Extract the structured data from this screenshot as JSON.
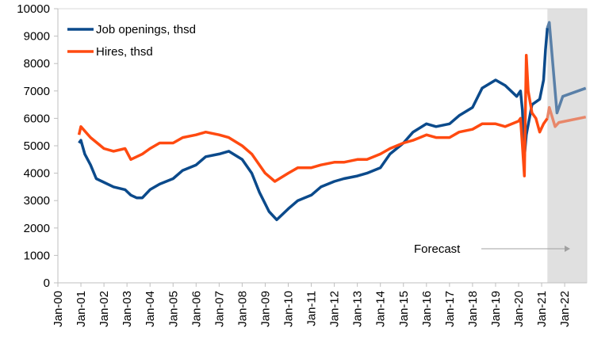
{
  "chart_data": {
    "type": "line",
    "title": "",
    "xlabel": "",
    "ylabel": "",
    "ylim": [
      0,
      10000
    ],
    "yticks": [
      0,
      1000,
      2000,
      3000,
      4000,
      5000,
      6000,
      7000,
      8000,
      9000,
      10000
    ],
    "xticks": [
      "Jan-00",
      "Jan-01",
      "Jan-02",
      "Jan-03",
      "Jan-04",
      "Jan-05",
      "Jan-06",
      "Jan-07",
      "Jan-08",
      "Jan-09",
      "Jan-10",
      "Jan-11",
      "Jan-12",
      "Jan-13",
      "Jan-14",
      "Jan-15",
      "Jan-16",
      "Jan-17",
      "Jan-18",
      "Jan-19",
      "Jan-20",
      "Jan-21",
      "Jan-22"
    ],
    "grid": false,
    "legend": "top-left",
    "forecast": {
      "label": "Forecast",
      "start": "2021-04",
      "end": "2022-12",
      "shade_color": "#e0e0e0"
    },
    "series": [
      {
        "name": "Job openings, thsd",
        "color": "#0b4a8b",
        "forecast_color": "#5a80a8",
        "points": [
          [
            "2000-12",
            5100
          ],
          [
            "2001-01",
            5200
          ],
          [
            "2001-03",
            4700
          ],
          [
            "2001-06",
            4300
          ],
          [
            "2001-09",
            3800
          ],
          [
            "2001-12",
            3700
          ],
          [
            "2002-06",
            3500
          ],
          [
            "2002-12",
            3400
          ],
          [
            "2003-03",
            3200
          ],
          [
            "2003-06",
            3100
          ],
          [
            "2003-09",
            3100
          ],
          [
            "2004-01",
            3400
          ],
          [
            "2004-06",
            3600
          ],
          [
            "2005-01",
            3800
          ],
          [
            "2005-06",
            4100
          ],
          [
            "2006-01",
            4300
          ],
          [
            "2006-06",
            4600
          ],
          [
            "2007-01",
            4700
          ],
          [
            "2007-06",
            4800
          ],
          [
            "2008-01",
            4500
          ],
          [
            "2008-06",
            4000
          ],
          [
            "2008-10",
            3300
          ],
          [
            "2009-03",
            2600
          ],
          [
            "2009-07",
            2300
          ],
          [
            "2010-01",
            2700
          ],
          [
            "2010-06",
            3000
          ],
          [
            "2011-01",
            3200
          ],
          [
            "2011-06",
            3500
          ],
          [
            "2012-01",
            3700
          ],
          [
            "2012-06",
            3800
          ],
          [
            "2013-01",
            3900
          ],
          [
            "2013-06",
            4000
          ],
          [
            "2014-01",
            4200
          ],
          [
            "2014-06",
            4700
          ],
          [
            "2015-01",
            5100
          ],
          [
            "2015-06",
            5500
          ],
          [
            "2016-01",
            5800
          ],
          [
            "2016-06",
            5700
          ],
          [
            "2017-01",
            5800
          ],
          [
            "2017-06",
            6100
          ],
          [
            "2018-01",
            6400
          ],
          [
            "2018-06",
            7100
          ],
          [
            "2019-01",
            7400
          ],
          [
            "2019-06",
            7200
          ],
          [
            "2019-12",
            6800
          ],
          [
            "2020-02",
            7000
          ],
          [
            "2020-03",
            6300
          ],
          [
            "2020-04",
            4600
          ],
          [
            "2020-05",
            5400
          ],
          [
            "2020-08",
            6500
          ],
          [
            "2020-12",
            6700
          ],
          [
            "2021-02",
            7400
          ],
          [
            "2021-03",
            8500
          ],
          [
            "2021-04",
            9300
          ]
        ],
        "forecast_points": [
          [
            "2021-04",
            9300
          ],
          [
            "2021-05",
            9500
          ],
          [
            "2021-09",
            6200
          ],
          [
            "2021-12",
            6800
          ],
          [
            "2022-12",
            7100
          ]
        ]
      },
      {
        "name": "Hires, thsd",
        "color": "#ff4a10",
        "forecast_color": "#e8876a",
        "points": [
          [
            "2000-12",
            5400
          ],
          [
            "2001-01",
            5700
          ],
          [
            "2001-06",
            5300
          ],
          [
            "2002-01",
            4900
          ],
          [
            "2002-06",
            4800
          ],
          [
            "2002-12",
            4900
          ],
          [
            "2003-03",
            4500
          ],
          [
            "2003-09",
            4700
          ],
          [
            "2004-01",
            4900
          ],
          [
            "2004-06",
            5100
          ],
          [
            "2005-01",
            5100
          ],
          [
            "2005-06",
            5300
          ],
          [
            "2006-01",
            5400
          ],
          [
            "2006-06",
            5500
          ],
          [
            "2007-01",
            5400
          ],
          [
            "2007-06",
            5300
          ],
          [
            "2008-01",
            5000
          ],
          [
            "2008-06",
            4700
          ],
          [
            "2009-01",
            4000
          ],
          [
            "2009-06",
            3700
          ],
          [
            "2010-01",
            4000
          ],
          [
            "2010-06",
            4200
          ],
          [
            "2011-01",
            4200
          ],
          [
            "2011-06",
            4300
          ],
          [
            "2012-01",
            4400
          ],
          [
            "2012-06",
            4400
          ],
          [
            "2013-01",
            4500
          ],
          [
            "2013-06",
            4500
          ],
          [
            "2014-01",
            4700
          ],
          [
            "2014-06",
            4900
          ],
          [
            "2015-01",
            5100
          ],
          [
            "2015-06",
            5200
          ],
          [
            "2016-01",
            5400
          ],
          [
            "2016-06",
            5300
          ],
          [
            "2017-01",
            5300
          ],
          [
            "2017-06",
            5500
          ],
          [
            "2018-01",
            5600
          ],
          [
            "2018-06",
            5800
          ],
          [
            "2019-01",
            5800
          ],
          [
            "2019-06",
            5700
          ],
          [
            "2020-01",
            5900
          ],
          [
            "2020-02",
            6000
          ],
          [
            "2020-03",
            5000
          ],
          [
            "2020-04",
            3900
          ],
          [
            "2020-05",
            8300
          ],
          [
            "2020-06",
            7000
          ],
          [
            "2020-08",
            6200
          ],
          [
            "2020-10",
            6000
          ],
          [
            "2020-12",
            5500
          ],
          [
            "2021-02",
            5800
          ],
          [
            "2021-04",
            6000
          ]
        ],
        "forecast_points": [
          [
            "2021-04",
            6000
          ],
          [
            "2021-05",
            6400
          ],
          [
            "2021-08",
            5700
          ],
          [
            "2021-10",
            5850
          ],
          [
            "2022-12",
            6050
          ]
        ]
      }
    ]
  }
}
